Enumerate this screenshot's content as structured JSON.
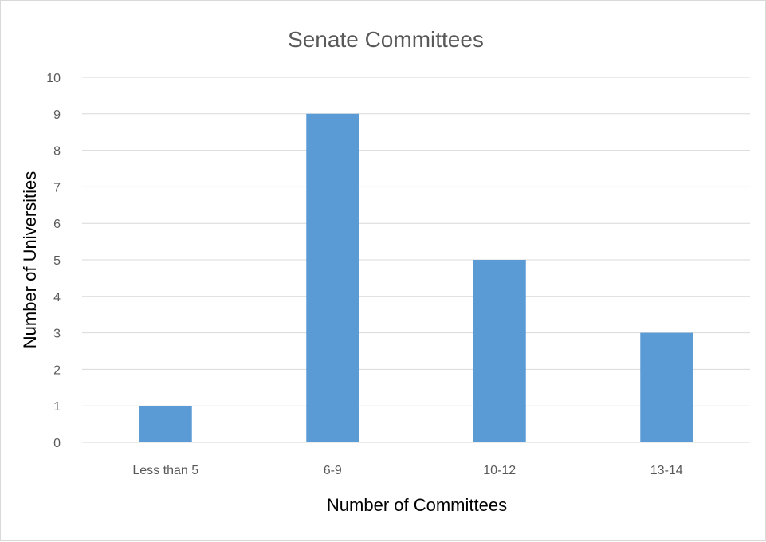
{
  "chart_data": {
    "type": "bar",
    "title": "Senate Committees",
    "xlabel": "Number of Committees",
    "ylabel": "Number of Universities",
    "categories": [
      "Less than 5",
      "6-9",
      "10-12",
      "13-14"
    ],
    "values": [
      1,
      9,
      5,
      3
    ],
    "ylim": [
      0,
      10
    ],
    "yticks": [
      "0",
      "1",
      "2",
      "3",
      "4",
      "5",
      "6",
      "7",
      "8",
      "9",
      "10"
    ],
    "grid": true,
    "legend": "none",
    "bar_color": "#5b9bd5"
  }
}
